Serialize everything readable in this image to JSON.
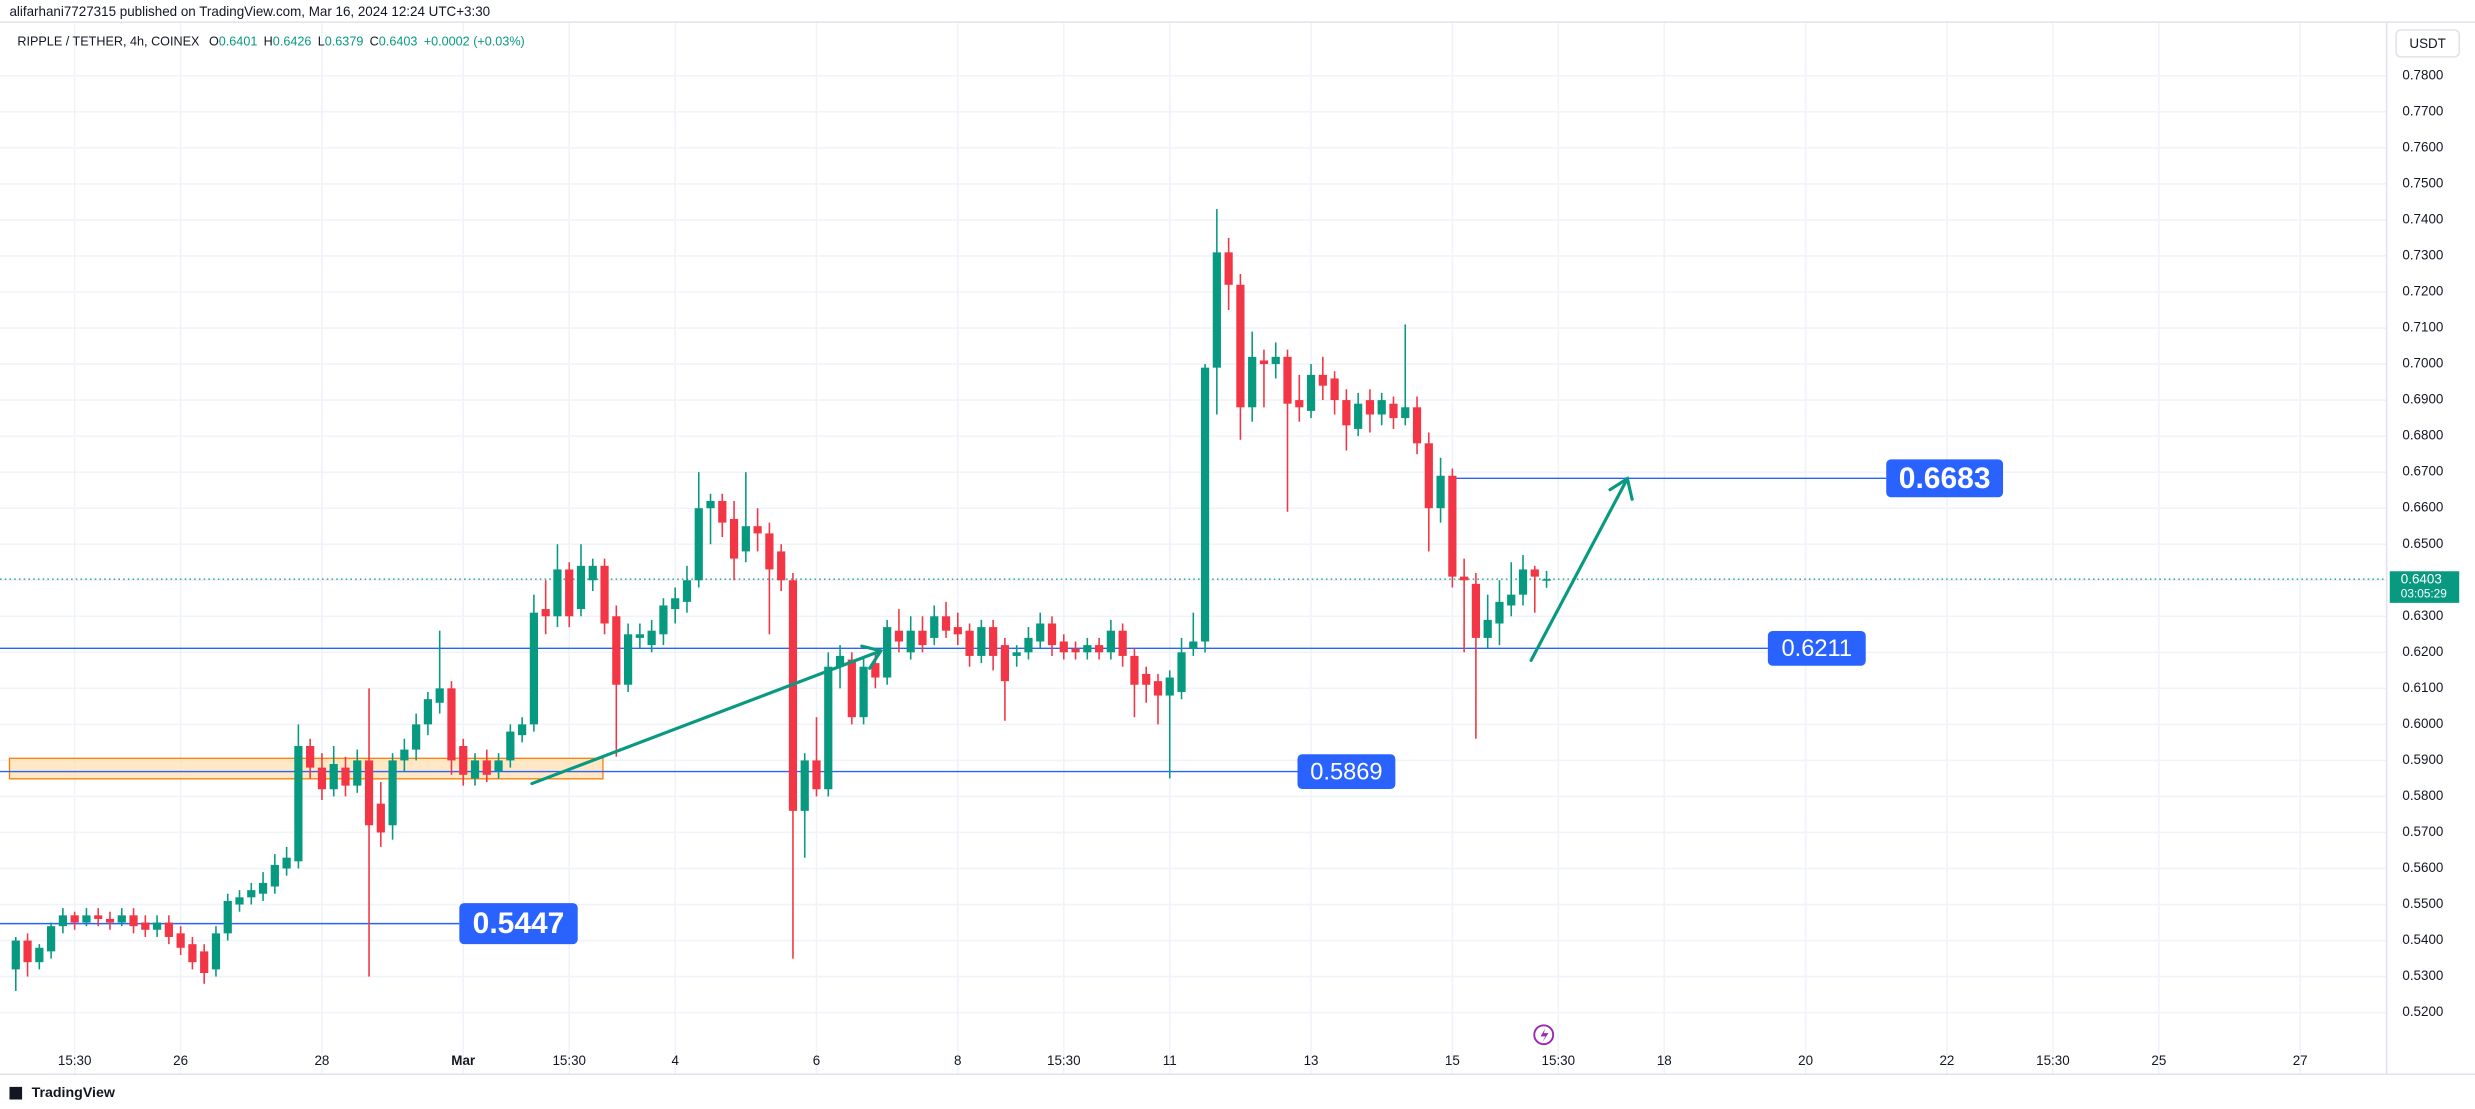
{
  "header": {
    "published": "alifarhani7727315 published on TradingView.com, Mar 16, 2024 12:24 UTC+3:30",
    "symbol": "RIPPLE / TETHER, 4h, COINEX",
    "keys": [
      "O",
      "H",
      "L",
      "C"
    ],
    "change": "+0.0002 (+0.03%)",
    "currency": "USDT",
    "countdown": "03:05:29"
  },
  "footer": {
    "brand": "TradingView"
  },
  "chart_data": {
    "type": "candlestick",
    "up_color": "#089981",
    "down_color": "#f23645",
    "grid": true,
    "categories": [
      null,
      null,
      null,
      null,
      null,
      "15:30",
      null,
      null,
      null,
      null,
      null,
      null,
      null,
      null,
      "26",
      null,
      null,
      null,
      null,
      null,
      null,
      null,
      null,
      null,
      null,
      null,
      "28",
      null,
      null,
      null,
      null,
      null,
      null,
      null,
      null,
      null,
      null,
      null,
      "Mar",
      null,
      null,
      null,
      null,
      null,
      null,
      null,
      null,
      "15:30",
      null,
      null,
      null,
      null,
      null,
      null,
      null,
      null,
      "4",
      null,
      null,
      null,
      null,
      null,
      null,
      null,
      null,
      null,
      null,
      null,
      "6",
      null,
      null,
      null,
      null,
      null,
      null,
      null,
      null,
      null,
      null,
      null,
      "8",
      null,
      null,
      null,
      null,
      null,
      null,
      null,
      null,
      "15:30",
      null,
      null,
      null,
      null,
      null,
      null,
      null,
      null,
      "11",
      null,
      null,
      null,
      null,
      null,
      null,
      null,
      null,
      null,
      null,
      null,
      "13",
      null,
      null,
      null,
      null,
      null,
      null,
      null,
      null,
      null,
      null,
      null,
      "15",
      null,
      null,
      null,
      null,
      null,
      null,
      null,
      null,
      "15:30",
      null,
      null,
      null,
      null,
      null,
      null,
      null,
      null,
      "18",
      null,
      null,
      null,
      null,
      null,
      null,
      null,
      null,
      null,
      null,
      null,
      "20",
      null,
      null,
      null,
      null,
      null,
      null,
      null,
      null,
      null,
      null,
      null,
      "22",
      null,
      null,
      null,
      null,
      null,
      null,
      null,
      null,
      "15:30",
      null,
      null,
      null,
      null,
      null,
      null,
      null,
      null,
      "25",
      null,
      null,
      null,
      null,
      null,
      null,
      null,
      null,
      null,
      null,
      null,
      "27",
      null,
      null,
      null,
      null,
      null,
      null,
      null
    ],
    "open": [
      0.532,
      0.54,
      0.534,
      0.537,
      0.544,
      0.547,
      0.545,
      0.547,
      0.546,
      0.545,
      0.547,
      0.545,
      0.543,
      0.545,
      0.542,
      0.539,
      0.537,
      0.532,
      0.542,
      0.55,
      0.552,
      0.553,
      0.555,
      0.56,
      0.562,
      0.594,
      0.588,
      0.582,
      0.588,
      0.583,
      0.59,
      0.578,
      0.572,
      0.59,
      0.593,
      0.6,
      0.606,
      0.61,
      0.594,
      0.585,
      0.59,
      0.587,
      0.59,
      0.597,
      0.6,
      0.632,
      0.63,
      0.643,
      0.632,
      0.64,
      0.644,
      0.63,
      0.611,
      0.624,
      0.622,
      0.625,
      0.632,
      0.634,
      0.64,
      0.66,
      0.662,
      0.657,
      0.648,
      0.655,
      0.653,
      0.648,
      0.64,
      0.576,
      0.59,
      0.582,
      0.616,
      0.618,
      0.602,
      0.617,
      0.613,
      0.626,
      0.62,
      0.626,
      0.624,
      0.63,
      0.627,
      0.626,
      0.619,
      0.627,
      0.622,
      0.619,
      0.62,
      0.623,
      0.628,
      0.623,
      0.621,
      0.62,
      0.622,
      0.62,
      0.626,
      0.619,
      0.614,
      0.612,
      0.608,
      0.609,
      0.621,
      0.623,
      0.699,
      0.731,
      0.722,
      0.688,
      0.701,
      0.7,
      0.702,
      0.69,
      0.687,
      0.697,
      0.696,
      0.69,
      0.682,
      0.69,
      0.686,
      0.689,
      0.685,
      0.688,
      0.678,
      0.66,
      0.669,
      0.641,
      0.639,
      0.624,
      0.628,
      0.633,
      0.636,
      0.643,
      0.6401,
      null,
      null,
      null,
      null,
      null,
      null,
      null,
      null,
      null,
      null,
      null,
      null,
      null,
      null,
      null,
      null,
      null,
      null,
      null,
      null,
      null,
      null,
      null,
      null,
      null,
      null,
      null,
      null,
      null,
      null,
      null,
      null,
      null,
      null,
      null,
      null,
      null,
      null,
      null,
      null,
      null,
      null,
      null,
      null,
      null,
      null,
      null,
      null,
      null,
      null,
      null,
      null,
      null,
      null,
      null,
      null,
      null,
      null,
      null,
      null,
      null,
      null,
      null,
      null,
      null,
      null,
      null,
      null,
      null,
      null,
      null
    ],
    "high": [
      0.541,
      0.542,
      0.539,
      0.545,
      0.549,
      0.548,
      0.549,
      0.549,
      0.548,
      0.549,
      0.549,
      0.547,
      0.547,
      0.547,
      0.544,
      0.541,
      0.539,
      0.544,
      0.553,
      0.554,
      0.556,
      0.559,
      0.564,
      0.566,
      0.6,
      0.596,
      0.592,
      0.594,
      0.591,
      0.593,
      0.61,
      0.584,
      0.592,
      0.596,
      0.603,
      0.609,
      0.626,
      0.612,
      0.596,
      0.592,
      0.593,
      0.592,
      0.6,
      0.602,
      0.636,
      0.64,
      0.65,
      0.645,
      0.65,
      0.646,
      0.646,
      0.633,
      0.628,
      0.628,
      0.629,
      0.635,
      0.638,
      0.644,
      0.67,
      0.664,
      0.664,
      0.662,
      0.67,
      0.66,
      0.656,
      0.65,
      0.642,
      0.592,
      0.602,
      0.62,
      0.622,
      0.62,
      0.619,
      0.62,
      0.629,
      0.632,
      0.63,
      0.63,
      0.633,
      0.634,
      0.631,
      0.628,
      0.629,
      0.629,
      0.624,
      0.622,
      0.627,
      0.631,
      0.63,
      0.625,
      0.623,
      0.624,
      0.624,
      0.629,
      0.628,
      0.621,
      0.616,
      0.614,
      0.615,
      0.624,
      0.631,
      0.7,
      0.743,
      0.735,
      0.725,
      0.709,
      0.704,
      0.706,
      0.704,
      0.697,
      0.7,
      0.702,
      0.698,
      0.693,
      0.692,
      0.693,
      0.692,
      0.691,
      0.711,
      0.691,
      0.681,
      0.674,
      0.671,
      0.646,
      0.642,
      0.636,
      0.64,
      0.645,
      0.647,
      0.644,
      0.6426,
      null,
      null,
      null,
      null,
      null,
      null,
      null,
      null,
      null,
      null,
      null,
      null,
      null,
      null,
      null,
      null,
      null,
      null,
      null,
      null,
      null,
      null,
      null,
      null,
      null,
      null,
      null,
      null,
      null,
      null,
      null,
      null,
      null,
      null,
      null,
      null,
      null,
      null,
      null,
      null,
      null,
      null,
      null,
      null,
      null,
      null,
      null,
      null,
      null,
      null,
      null,
      null,
      null,
      null,
      null,
      null,
      null,
      null,
      null,
      null,
      null,
      null,
      null,
      null,
      null,
      null,
      null,
      null,
      null,
      null,
      null
    ],
    "low": [
      0.526,
      0.53,
      0.532,
      0.535,
      0.542,
      0.543,
      0.544,
      0.544,
      0.543,
      0.544,
      0.542,
      0.541,
      0.541,
      0.539,
      0.536,
      0.532,
      0.528,
      0.53,
      0.54,
      0.548,
      0.55,
      0.551,
      0.553,
      0.558,
      0.56,
      0.585,
      0.579,
      0.58,
      0.58,
      0.581,
      0.53,
      0.566,
      0.568,
      0.587,
      0.59,
      0.597,
      0.603,
      0.586,
      0.583,
      0.583,
      0.584,
      0.585,
      0.588,
      0.595,
      0.598,
      0.625,
      0.627,
      0.627,
      0.63,
      0.637,
      0.625,
      0.591,
      0.609,
      0.621,
      0.62,
      0.622,
      0.628,
      0.631,
      0.638,
      0.65,
      0.652,
      0.64,
      0.645,
      0.648,
      0.625,
      0.637,
      0.535,
      0.563,
      0.58,
      0.58,
      0.61,
      0.6,
      0.6,
      0.61,
      0.611,
      0.62,
      0.618,
      0.62,
      0.622,
      0.624,
      0.622,
      0.616,
      0.617,
      0.615,
      0.601,
      0.616,
      0.618,
      0.621,
      0.619,
      0.618,
      0.618,
      0.618,
      0.618,
      0.618,
      0.616,
      0.602,
      0.606,
      0.6,
      0.585,
      0.607,
      0.619,
      0.62,
      0.686,
      0.715,
      0.679,
      0.684,
      0.688,
      0.696,
      0.659,
      0.684,
      0.685,
      0.69,
      0.686,
      0.676,
      0.68,
      0.681,
      0.683,
      0.682,
      0.683,
      0.675,
      0.648,
      0.656,
      0.638,
      0.62,
      0.596,
      0.621,
      0.622,
      0.63,
      0.633,
      0.631,
      0.6379,
      null,
      null,
      null,
      null,
      null,
      null,
      null,
      null,
      null,
      null,
      null,
      null,
      null,
      null,
      null,
      null,
      null,
      null,
      null,
      null,
      null,
      null,
      null,
      null,
      null,
      null,
      null,
      null,
      null,
      null,
      null,
      null,
      null,
      null,
      null,
      null,
      null,
      null,
      null,
      null,
      null,
      null,
      null,
      null,
      null,
      null,
      null,
      null,
      null,
      null,
      null,
      null,
      null,
      null,
      null,
      null,
      null,
      null,
      null,
      null,
      null,
      null,
      null,
      null,
      null,
      null,
      null,
      null,
      null,
      null,
      null
    ],
    "close": [
      0.54,
      0.534,
      0.538,
      0.544,
      0.547,
      0.545,
      0.547,
      0.546,
      0.545,
      0.547,
      0.544,
      0.543,
      0.545,
      0.541,
      0.538,
      0.534,
      0.531,
      0.542,
      0.551,
      0.552,
      0.554,
      0.556,
      0.561,
      0.563,
      0.594,
      0.588,
      0.582,
      0.589,
      0.583,
      0.59,
      0.572,
      0.57,
      0.59,
      0.593,
      0.6,
      0.607,
      0.61,
      0.59,
      0.586,
      0.59,
      0.586,
      0.59,
      0.598,
      0.6,
      0.631,
      0.63,
      0.643,
      0.63,
      0.644,
      0.644,
      0.628,
      0.611,
      0.625,
      0.625,
      0.626,
      0.633,
      0.635,
      0.64,
      0.66,
      0.662,
      0.656,
      0.646,
      0.655,
      0.653,
      0.643,
      0.64,
      0.576,
      0.59,
      0.582,
      0.616,
      0.619,
      0.602,
      0.616,
      0.613,
      0.627,
      0.623,
      0.626,
      0.622,
      0.63,
      0.626,
      0.625,
      0.619,
      0.627,
      0.619,
      0.612,
      0.62,
      0.624,
      0.628,
      0.622,
      0.62,
      0.62,
      0.622,
      0.62,
      0.626,
      0.619,
      0.611,
      0.611,
      0.608,
      0.613,
      0.62,
      0.623,
      0.699,
      0.731,
      0.722,
      0.688,
      0.702,
      0.7,
      0.702,
      0.689,
      0.688,
      0.697,
      0.694,
      0.69,
      0.683,
      0.689,
      0.686,
      0.69,
      0.685,
      0.688,
      0.678,
      0.66,
      0.669,
      0.641,
      0.64,
      0.624,
      0.629,
      0.634,
      0.636,
      0.643,
      0.641,
      0.6403,
      null,
      null,
      null,
      null,
      null,
      null,
      null,
      null,
      null,
      null,
      null,
      null,
      null,
      null,
      null,
      null,
      null,
      null,
      null,
      null,
      null,
      null,
      null,
      null,
      null,
      null,
      null,
      null,
      null,
      null,
      null,
      null,
      null,
      null,
      null,
      null,
      null,
      null,
      null,
      null,
      null,
      null,
      null,
      null,
      null,
      null,
      null,
      null,
      null,
      null,
      null,
      null,
      null,
      null,
      null,
      null,
      null,
      null,
      null,
      null,
      null,
      null,
      null,
      null,
      null,
      null,
      null,
      null,
      null,
      null,
      null
    ],
    "levels": [
      0.6683,
      0.6211,
      0.5869,
      0.5447
    ],
    "level_color": "#2962ff",
    "ylim": [
      0.5029,
      0.7949
    ],
    "yticks": [
      {
        "value": 0.52,
        "label": "0.5200"
      },
      {
        "value": 0.53,
        "label": "0.5300"
      },
      {
        "value": 0.54,
        "label": "0.5400"
      },
      {
        "value": 0.55,
        "label": "0.5500"
      },
      {
        "value": 0.56,
        "label": "0.5600"
      },
      {
        "value": 0.57,
        "label": "0.5700"
      },
      {
        "value": 0.58,
        "label": "0.5800"
      },
      {
        "value": 0.59,
        "label": "0.5900"
      },
      {
        "value": 0.6,
        "label": "0.6000"
      },
      {
        "value": 0.61,
        "label": "0.6100"
      },
      {
        "value": 0.62,
        "label": "0.6200"
      },
      {
        "value": 0.63,
        "label": "0.6300"
      },
      {
        "value": 0.64,
        "label": "0.6400"
      },
      {
        "value": 0.65,
        "label": "0.6500"
      },
      {
        "value": 0.66,
        "label": "0.6600"
      },
      {
        "value": 0.67,
        "label": "0.6700"
      },
      {
        "value": 0.68,
        "label": "0.6800"
      },
      {
        "value": 0.69,
        "label": "0.6900"
      },
      {
        "value": 0.7,
        "label": "0.7000"
      },
      {
        "value": 0.71,
        "label": "0.7100"
      },
      {
        "value": 0.72,
        "label": "0.7200"
      },
      {
        "value": 0.73,
        "label": "0.7300"
      },
      {
        "value": 0.74,
        "label": "0.7400"
      },
      {
        "value": 0.75,
        "label": "0.7500"
      },
      {
        "value": 0.76,
        "label": "0.7600"
      },
      {
        "value": 0.77,
        "label": "0.7700"
      },
      {
        "value": 0.78,
        "label": "0.7800"
      }
    ]
  }
}
